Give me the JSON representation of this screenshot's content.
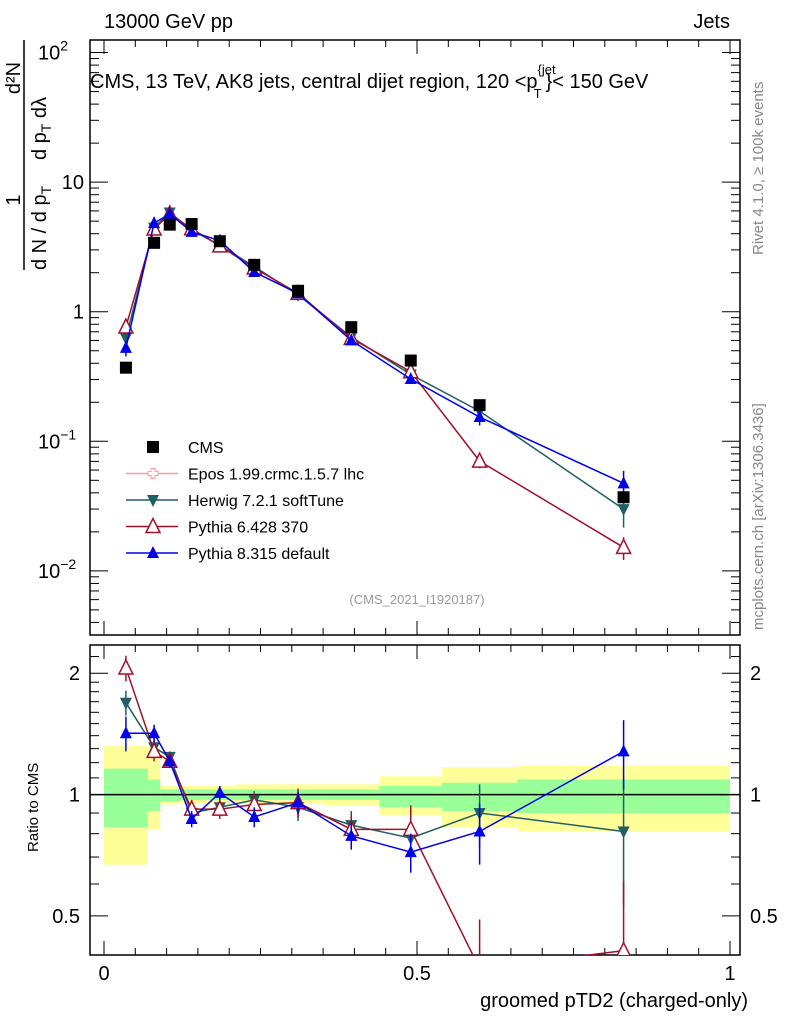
{
  "header": {
    "left": "13000 GeV pp",
    "right": "Jets"
  },
  "side_labels": {
    "rivet": "Rivet 4.1.0, ≥ 100k events",
    "mcplots": "mcplots.cern.ch [arXiv:1306.3436]"
  },
  "chart_data": [
    {
      "type": "line",
      "panel": "main",
      "title": "CMS, 13 TeV, AK8 jets, central dijet region, 120 <p_T^{jet}< 150 GeV",
      "title_parts": {
        "pre": "CMS, 13 TeV, AK8 jets, central dijet region, 120 <p",
        "sup": "{jet",
        "sub": "T",
        "post": "}< 150 GeV"
      },
      "ylabel": "1 / (dN / dp_T) · d²N / (dp_T dλ)",
      "ylabel_parts": {
        "num1": "1",
        "den1": "d N / d p",
        "num2": "d²N",
        "den2": "d p",
        "den2b": "dλ"
      },
      "yscale": "log",
      "ylim": [
        0.0032,
        125
      ],
      "xlim": [
        -0.02,
        1.02
      ],
      "ytick_values": [
        100,
        10,
        1,
        0.1,
        0.01
      ],
      "ytick_labels": [
        {
          "base": "10",
          "exp": "2"
        },
        {
          "base": "10",
          "exp": ""
        },
        {
          "base": "1",
          "exp": ""
        },
        {
          "base": "10",
          "exp": "−1"
        },
        {
          "base": "10",
          "exp": "−2"
        }
      ],
      "watermark": "(CMS_2021_I1920187)",
      "legend_position": "bottom-left",
      "x": [
        0.035,
        0.08,
        0.105,
        0.14,
        0.185,
        0.24,
        0.31,
        0.395,
        0.49,
        0.6,
        0.83
      ],
      "bin_edges": [
        0,
        0.07,
        0.09,
        0.12,
        0.16,
        0.21,
        0.27,
        0.35,
        0.44,
        0.54,
        0.66,
        1.0
      ],
      "data": {
        "name": "CMS",
        "color": "#000000",
        "values": [
          0.37,
          3.4,
          4.7,
          4.75,
          3.5,
          2.3,
          1.45,
          0.76,
          0.42,
          0.19,
          0.037
        ]
      },
      "series": [
        {
          "name": "Epos 1.99.crmc.1.5.7 lhc",
          "color": "#ff9999",
          "marker": "open-cross",
          "ratio": [],
          "ratio_err": []
        },
        {
          "name": "Herwig 7.2.1 softTune",
          "color": "#1f5f66",
          "marker": "down-triangle",
          "ratio": [
            1.69,
            1.31,
            1.24,
            0.9,
            0.93,
            0.97,
            0.93,
            0.84,
            0.78,
            0.9,
            0.81
          ],
          "ratio_err": [
            0.12,
            0.06,
            0.04,
            0.04,
            0.04,
            0.05,
            0.07,
            0.07,
            0.08,
            0.16,
            0.28
          ]
        },
        {
          "name": "Pythia 6.428 370",
          "color": "#a0102a",
          "marker": "open-up-triangle",
          "ratio": [
            2.06,
            1.28,
            1.21,
            0.92,
            0.92,
            0.945,
            0.955,
            0.82,
            0.82,
            0.37,
            0.41
          ],
          "ratio_err": [
            0.15,
            0.07,
            0.04,
            0.05,
            0.05,
            0.06,
            0.08,
            0.08,
            0.12,
            0.12,
            0.2
          ]
        },
        {
          "name": "Pythia 8.315 default",
          "color": "#0000ee",
          "marker": "up-triangle",
          "ratio": [
            1.42,
            1.42,
            1.21,
            0.87,
            1.01,
            0.88,
            0.955,
            0.79,
            0.72,
            0.81,
            1.28
          ],
          "ratio_err": [
            0.14,
            0.07,
            0.04,
            0.04,
            0.04,
            0.05,
            0.06,
            0.06,
            0.08,
            0.14,
            0.25
          ]
        }
      ]
    },
    {
      "type": "line",
      "panel": "ratio",
      "ylabel": "Ratio to CMS",
      "xlabel": "groomed pTD2 (charged-only)",
      "yscale": "log",
      "ylim": [
        0.4,
        2.35
      ],
      "ytick_values": [
        2,
        1,
        0.5
      ],
      "ytick_labels": [
        "2",
        "1",
        "0.5"
      ],
      "xtick_values": [
        0,
        0.5,
        1
      ],
      "xtick_labels": [
        "0",
        "0.5",
        "1"
      ],
      "band_total": {
        "color": "#ffff99",
        "low": [
          0.67,
          0.82,
          0.945,
          0.95,
          0.95,
          0.95,
          0.95,
          0.94,
          0.89,
          0.83,
          0.81
        ],
        "high": [
          1.32,
          1.31,
          1.05,
          1.05,
          1.05,
          1.06,
          1.06,
          1.06,
          1.11,
          1.17,
          1.18
        ]
      },
      "band_stat": {
        "color": "#99ff99",
        "low": [
          0.83,
          0.91,
          0.96,
          0.97,
          0.97,
          0.97,
          0.97,
          0.97,
          0.93,
          0.91,
          0.9
        ],
        "high": [
          1.16,
          1.09,
          1.03,
          1.03,
          1.03,
          1.03,
          1.03,
          1.03,
          1.05,
          1.07,
          1.09
        ]
      }
    }
  ]
}
